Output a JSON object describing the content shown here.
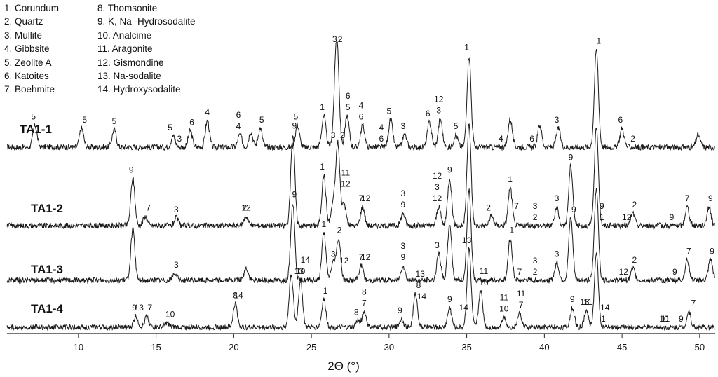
{
  "chart_data": {
    "type": "line",
    "title": "",
    "xlabel": "2Θ (°)",
    "ylabel": "",
    "xlim": [
      5.4,
      51
    ],
    "x_ticks": [
      "10",
      "15",
      "20",
      "25",
      "30",
      "35",
      "40",
      "45",
      "50"
    ],
    "grid": false,
    "legend_position": "top-left",
    "legend": [
      "1. Corundum",
      "2. Quartz",
      "3. Mullite",
      "4. Gibbsite",
      "5. Zeolite A",
      "6. Katoites",
      "7. Boehmite",
      "8. Thomsonite",
      "9. K, Na -Hydrosodalite",
      "10. Analcime",
      "11. Aragonite",
      "12. Gismondine",
      "13. Na-sodalite",
      "14. Hydroxysodalite"
    ],
    "series": [
      {
        "name": "TA1-1",
        "baseline": 0,
        "peaks": [
          [
            7.2,
            0.35
          ],
          [
            10.2,
            0.3
          ],
          [
            12.3,
            0.28
          ],
          [
            16.1,
            0.18
          ],
          [
            17.2,
            0.26
          ],
          [
            18.3,
            0.42
          ],
          [
            20.4,
            0.2
          ],
          [
            21.1,
            0.24
          ],
          [
            21.7,
            0.3
          ],
          [
            24.1,
            0.35
          ],
          [
            25.8,
            0.5
          ],
          [
            26.5,
            0.35
          ],
          [
            26.65,
            1.6
          ],
          [
            27.3,
            0.5
          ],
          [
            28.3,
            0.35
          ],
          [
            30.1,
            0.44
          ],
          [
            31.0,
            0.2
          ],
          [
            32.6,
            0.4
          ],
          [
            33.3,
            0.45
          ],
          [
            34.3,
            0.2
          ],
          [
            35.15,
            1.45
          ],
          [
            37.8,
            0.45
          ],
          [
            39.7,
            0.35
          ],
          [
            40.9,
            0.3
          ],
          [
            43.35,
            1.55
          ],
          [
            45.0,
            0.3
          ],
          [
            49.9,
            0.2
          ]
        ],
        "labels": [
          {
            "x": 7.1,
            "t": "5"
          },
          {
            "x": 10.4,
            "t": "5"
          },
          {
            "x": 12.3,
            "t": "5"
          },
          {
            "x": 15.9,
            "t": "5"
          },
          {
            "x": 16.5,
            "t": "3"
          },
          {
            "x": 17.3,
            "t": "6"
          },
          {
            "x": 18.3,
            "t": "4"
          },
          {
            "x": 20.3,
            "t": "4"
          },
          {
            "x": 20.3,
            "t": "6"
          },
          {
            "x": 21.8,
            "t": "5"
          },
          {
            "x": 24.0,
            "t": "5"
          },
          {
            "x": 25.7,
            "t": "1"
          },
          {
            "x": 26.5,
            "t": "3"
          },
          {
            "x": 26.85,
            "t": "2"
          },
          {
            "x": 27.35,
            "t": "5"
          },
          {
            "x": 27.35,
            "t": "6"
          },
          {
            "x": 28.2,
            "t": "6"
          },
          {
            "x": 28.2,
            "t": "4"
          },
          {
            "x": 29.5,
            "t": "6"
          },
          {
            "x": 29.5,
            "t": "4"
          },
          {
            "x": 30.0,
            "t": "5"
          },
          {
            "x": 30.9,
            "t": "3"
          },
          {
            "x": 32.5,
            "t": "6"
          },
          {
            "x": 33.2,
            "t": "3"
          },
          {
            "x": 33.2,
            "t": "12"
          },
          {
            "x": 34.3,
            "t": "5"
          },
          {
            "x": 35.0,
            "t": "1"
          },
          {
            "x": 37.2,
            "t": "4"
          },
          {
            "x": 39.2,
            "t": "6"
          },
          {
            "x": 40.8,
            "t": "3"
          },
          {
            "x": 43.5,
            "t": "1"
          },
          {
            "x": 44.9,
            "t": "6"
          },
          {
            "x": 45.7,
            "t": "2"
          }
        ]
      },
      {
        "name": "TA1-2",
        "baseline": 0,
        "peaks": [
          [
            13.5,
            0.75
          ],
          [
            14.3,
            0.15
          ],
          [
            16.3,
            0.12
          ],
          [
            20.8,
            0.15
          ],
          [
            23.8,
            1.45
          ],
          [
            25.8,
            0.8
          ],
          [
            26.4,
            0.35
          ],
          [
            26.7,
            1.3
          ],
          [
            27.1,
            0.35
          ],
          [
            28.3,
            0.3
          ],
          [
            30.9,
            0.2
          ],
          [
            33.2,
            0.3
          ],
          [
            33.9,
            0.75
          ],
          [
            35.15,
            1.6
          ],
          [
            36.6,
            0.15
          ],
          [
            37.8,
            0.6
          ],
          [
            40.8,
            0.3
          ],
          [
            41.7,
            0.95
          ],
          [
            43.35,
            1.55
          ],
          [
            45.7,
            0.2
          ],
          [
            49.2,
            0.3
          ],
          [
            50.6,
            0.3
          ]
        ],
        "labels": [
          {
            "x": 13.4,
            "t": "9"
          },
          {
            "x": 14.5,
            "t": "7"
          },
          {
            "x": 16.3,
            "t": "3"
          },
          {
            "x": 20.7,
            "t": "2"
          },
          {
            "x": 20.8,
            "t": "12"
          },
          {
            "x": 23.9,
            "t": "9"
          },
          {
            "x": 25.7,
            "t": "1"
          },
          {
            "x": 26.4,
            "t": "3"
          },
          {
            "x": 27.0,
            "t": "2"
          },
          {
            "x": 27.2,
            "t": "12"
          },
          {
            "x": 27.2,
            "t": "11"
          },
          {
            "x": 28.2,
            "t": "7"
          },
          {
            "x": 28.5,
            "t": "12"
          },
          {
            "x": 30.9,
            "t": "9"
          },
          {
            "x": 30.9,
            "t": "3"
          },
          {
            "x": 33.1,
            "t": "12"
          },
          {
            "x": 33.1,
            "t": "3"
          },
          {
            "x": 33.1,
            "t": "12"
          },
          {
            "x": 33.9,
            "t": "9"
          },
          {
            "x": 36.4,
            "t": "2"
          },
          {
            "x": 37.8,
            "t": "1"
          },
          {
            "x": 38.2,
            "t": "7"
          },
          {
            "x": 39.4,
            "t": "2"
          },
          {
            "x": 39.4,
            "t": "3"
          },
          {
            "x": 40.8,
            "t": "3"
          },
          {
            "x": 41.7,
            "t": "9"
          },
          {
            "x": 43.7,
            "t": "1"
          },
          {
            "x": 43.7,
            "t": "9"
          },
          {
            "x": 45.3,
            "t": "12"
          },
          {
            "x": 45.8,
            "t": "2"
          },
          {
            "x": 48.2,
            "t": "9"
          },
          {
            "x": 49.2,
            "t": "7"
          },
          {
            "x": 50.7,
            "t": "9"
          }
        ]
      },
      {
        "name": "TA1-3",
        "baseline": 0,
        "peaks": [
          [
            13.5,
            0.85
          ],
          [
            16.2,
            0.12
          ],
          [
            20.8,
            0.2
          ],
          [
            23.8,
            1.3
          ],
          [
            25.8,
            0.8
          ],
          [
            26.4,
            0.3
          ],
          [
            26.75,
            0.7
          ],
          [
            28.2,
            0.25
          ],
          [
            30.9,
            0.25
          ],
          [
            33.2,
            0.45
          ],
          [
            33.9,
            0.95
          ],
          [
            35.15,
            1.5
          ],
          [
            37.8,
            0.7
          ],
          [
            40.8,
            0.3
          ],
          [
            41.7,
            1.05
          ],
          [
            43.35,
            1.55
          ],
          [
            45.7,
            0.2
          ],
          [
            49.2,
            0.35
          ],
          [
            50.7,
            0.35
          ]
        ],
        "labels": [
          {
            "x": 16.3,
            "t": "3"
          },
          {
            "x": 23.9,
            "t": "9"
          },
          {
            "x": 25.8,
            "t": "1"
          },
          {
            "x": 26.4,
            "t": "3"
          },
          {
            "x": 26.8,
            "t": "2"
          },
          {
            "x": 27.1,
            "t": "12"
          },
          {
            "x": 28.2,
            "t": "7"
          },
          {
            "x": 28.5,
            "t": "12"
          },
          {
            "x": 30.9,
            "t": "9"
          },
          {
            "x": 30.9,
            "t": "3"
          },
          {
            "x": 33.1,
            "t": "3"
          },
          {
            "x": 37.9,
            "t": "1"
          },
          {
            "x": 38.4,
            "t": "7"
          },
          {
            "x": 39.4,
            "t": "2"
          },
          {
            "x": 39.4,
            "t": "3"
          },
          {
            "x": 40.8,
            "t": "3"
          },
          {
            "x": 41.9,
            "t": "9"
          },
          {
            "x": 45.1,
            "t": "12"
          },
          {
            "x": 45.8,
            "t": "2"
          },
          {
            "x": 48.4,
            "t": "9"
          },
          {
            "x": 49.3,
            "t": "7"
          },
          {
            "x": 50.8,
            "t": "9"
          }
        ]
      },
      {
        "name": "TA1-4",
        "baseline": 0,
        "peaks": [
          [
            13.7,
            0.2
          ],
          [
            14.4,
            0.2
          ],
          [
            15.7,
            0.08
          ],
          [
            20.1,
            0.42
          ],
          [
            23.7,
            0.95
          ],
          [
            24.3,
            0.85
          ],
          [
            25.8,
            0.5
          ],
          [
            28.0,
            0.12
          ],
          [
            28.4,
            0.28
          ],
          [
            30.8,
            0.15
          ],
          [
            31.7,
            0.6
          ],
          [
            33.9,
            0.35
          ],
          [
            35.15,
            1.4
          ],
          [
            35.9,
            0.65
          ],
          [
            37.4,
            0.18
          ],
          [
            38.4,
            0.25
          ],
          [
            41.8,
            0.35
          ],
          [
            42.7,
            0.3
          ],
          [
            43.35,
            1.3
          ],
          [
            49.3,
            0.28
          ]
        ],
        "labels": [
          {
            "x": 13.6,
            "t": "9"
          },
          {
            "x": 13.9,
            "t": "13"
          },
          {
            "x": 14.6,
            "t": "7"
          },
          {
            "x": 15.9,
            "t": "10"
          },
          {
            "x": 20.1,
            "t": "8"
          },
          {
            "x": 20.3,
            "t": "14"
          },
          {
            "x": 24.3,
            "t": "10"
          },
          {
            "x": 24.2,
            "t": "13"
          },
          {
            "x": 24.6,
            "t": "14"
          },
          {
            "x": 25.9,
            "t": "1"
          },
          {
            "x": 27.9,
            "t": "8"
          },
          {
            "x": 28.4,
            "t": "7"
          },
          {
            "x": 28.4,
            "t": "8"
          },
          {
            "x": 30.7,
            "t": "9"
          },
          {
            "x": 31.9,
            "t": "8"
          },
          {
            "x": 32.0,
            "t": "13"
          },
          {
            "x": 32.1,
            "t": "14"
          },
          {
            "x": 33.9,
            "t": "9"
          },
          {
            "x": 35.0,
            "t": "13"
          },
          {
            "x": 34.8,
            "t": "14"
          },
          {
            "x": 36.1,
            "t": "10"
          },
          {
            "x": 36.1,
            "t": "11"
          },
          {
            "x": 37.4,
            "t": "10"
          },
          {
            "x": 37.4,
            "t": "11"
          },
          {
            "x": 38.5,
            "t": "7"
          },
          {
            "x": 38.5,
            "t": "11"
          },
          {
            "x": 41.8,
            "t": "9"
          },
          {
            "x": 42.6,
            "t": "13"
          },
          {
            "x": 42.8,
            "t": "11"
          },
          {
            "x": 43.8,
            "t": "1"
          },
          {
            "x": 43.9,
            "t": "14"
          },
          {
            "x": 47.7,
            "t": "10"
          },
          {
            "x": 47.8,
            "t": "11"
          },
          {
            "x": 48.8,
            "t": "9"
          },
          {
            "x": 49.6,
            "t": "7"
          }
        ]
      }
    ]
  }
}
